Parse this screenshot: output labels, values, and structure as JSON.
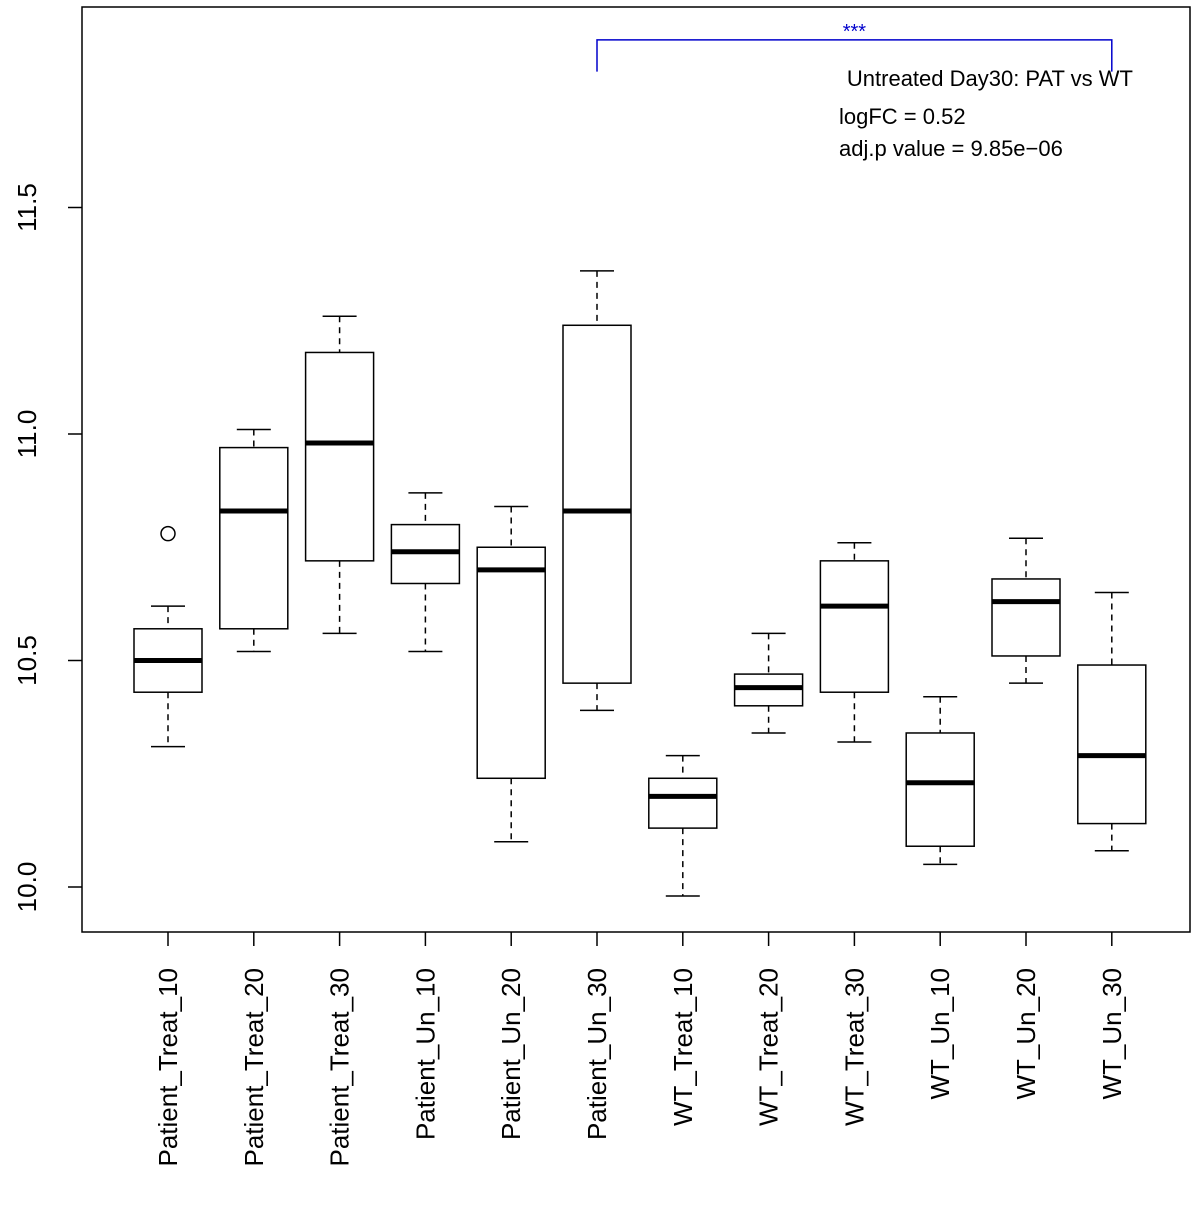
{
  "chart_data": {
    "type": "boxplot",
    "title": "",
    "xlabel": "",
    "ylabel": "",
    "ylim": [
      9.9,
      11.94
    ],
    "yticks": [
      "10.0",
      "10.5",
      "11.0",
      "11.5"
    ],
    "categories": [
      "Patient_Treat_10",
      "Patient_Treat_20",
      "Patient_Treat_30",
      "Patient_Un_10",
      "Patient_Un_20",
      "Patient_Un_30",
      "WT_Treat_10",
      "WT_Treat_20",
      "WT_Treat_30",
      "WT_Un_10",
      "WT_Un_20",
      "WT_Un_30"
    ],
    "boxes": [
      {
        "whisker_low": 10.31,
        "q1": 10.43,
        "median": 10.5,
        "q3": 10.57,
        "whisker_high": 10.62,
        "outliers": [
          10.78
        ]
      },
      {
        "whisker_low": 10.52,
        "q1": 10.57,
        "median": 10.83,
        "q3": 10.97,
        "whisker_high": 11.01,
        "outliers": []
      },
      {
        "whisker_low": 10.56,
        "q1": 10.72,
        "median": 10.98,
        "q3": 11.18,
        "whisker_high": 11.26,
        "outliers": []
      },
      {
        "whisker_low": 10.52,
        "q1": 10.67,
        "median": 10.74,
        "q3": 10.8,
        "whisker_high": 10.87,
        "outliers": []
      },
      {
        "whisker_low": 10.1,
        "q1": 10.24,
        "median": 10.7,
        "q3": 10.75,
        "whisker_high": 10.84,
        "outliers": []
      },
      {
        "whisker_low": 10.39,
        "q1": 10.45,
        "median": 10.83,
        "q3": 11.24,
        "whisker_high": 11.36,
        "outliers": []
      },
      {
        "whisker_low": 9.98,
        "q1": 10.13,
        "median": 10.2,
        "q3": 10.24,
        "whisker_high": 10.29,
        "outliers": []
      },
      {
        "whisker_low": 10.34,
        "q1": 10.4,
        "median": 10.44,
        "q3": 10.47,
        "whisker_high": 10.56,
        "outliers": []
      },
      {
        "whisker_low": 10.32,
        "q1": 10.43,
        "median": 10.62,
        "q3": 10.72,
        "whisker_high": 10.76,
        "outliers": []
      },
      {
        "whisker_low": 10.05,
        "q1": 10.09,
        "median": 10.23,
        "q3": 10.34,
        "whisker_high": 10.42,
        "outliers": []
      },
      {
        "whisker_low": 10.45,
        "q1": 10.51,
        "median": 10.63,
        "q3": 10.68,
        "whisker_high": 10.77,
        "outliers": []
      },
      {
        "whisker_low": 10.08,
        "q1": 10.14,
        "median": 10.29,
        "q3": 10.49,
        "whisker_high": 10.65,
        "outliers": []
      }
    ],
    "significance": {
      "from_category": 5,
      "to_category": 11,
      "stars": "***",
      "color": "#0000cc",
      "bracket_y": 11.87,
      "drop_to": 11.8
    },
    "annotations": {
      "comparison": "Untreated Day30: PAT vs WT",
      "logfc": "logFC =  0.52",
      "adjp": "adj.p value =  9.85e−06"
    },
    "grid": false,
    "legend": "none"
  }
}
